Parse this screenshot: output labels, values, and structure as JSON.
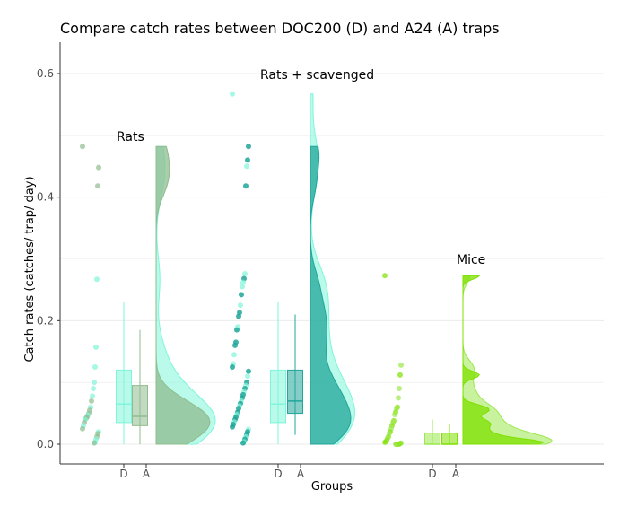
{
  "chart_data": {
    "type": "raincloud",
    "title": "Compare catch rates between DOC200 (D) and A24 (A) traps",
    "xlabel": "Groups",
    "ylabel": "Catch rates (catches/ trap/ day)",
    "ylim": [
      -0.03,
      0.65
    ],
    "yticks": [
      0.0,
      0.2,
      0.4,
      0.6
    ],
    "ytick_labels": [
      "0.0",
      "0.2",
      "0.4",
      "0.6"
    ],
    "grid": true,
    "groups": [
      {
        "name": "Rats",
        "colors": {
          "D": "#7ff5d9",
          "A": "#8fbc8f"
        },
        "D": {
          "min": 0.0,
          "q1": 0.035,
          "median": 0.065,
          "q3": 0.12,
          "max": 0.23
        },
        "A": {
          "min": 0.0,
          "q1": 0.03,
          "median": 0.045,
          "q3": 0.095,
          "max": 0.185
        },
        "points": [
          {
            "trap": "A",
            "value": 0.482
          },
          {
            "trap": "A",
            "value": 0.448
          },
          {
            "trap": "A",
            "value": 0.418
          },
          {
            "trap": "D",
            "value": 0.267
          },
          {
            "trap": "D",
            "value": 0.157
          },
          {
            "trap": "D",
            "value": 0.125
          },
          {
            "trap": "D",
            "value": 0.1
          },
          {
            "trap": "D",
            "value": 0.09
          },
          {
            "trap": "D",
            "value": 0.078
          },
          {
            "trap": "A",
            "value": 0.07
          },
          {
            "trap": "D",
            "value": 0.06
          },
          {
            "trap": "A",
            "value": 0.055
          },
          {
            "trap": "A",
            "value": 0.05
          },
          {
            "trap": "D",
            "value": 0.047
          },
          {
            "trap": "A",
            "value": 0.044
          },
          {
            "trap": "A",
            "value": 0.042
          },
          {
            "trap": "D",
            "value": 0.04
          },
          {
            "trap": "A",
            "value": 0.035
          },
          {
            "trap": "D",
            "value": 0.03
          },
          {
            "trap": "A",
            "value": 0.025
          },
          {
            "trap": "D",
            "value": 0.02
          },
          {
            "trap": "A",
            "value": 0.017
          },
          {
            "trap": "A",
            "value": 0.012
          },
          {
            "trap": "D",
            "value": 0.008
          },
          {
            "trap": "D",
            "value": 0.003
          },
          {
            "trap": "A",
            "value": 0.002
          }
        ]
      },
      {
        "name": "Rats + scavenged",
        "colors": {
          "D": "#7ff5d9",
          "A": "#20a69a"
        },
        "D": {
          "min": 0.0,
          "q1": 0.035,
          "median": 0.065,
          "q3": 0.12,
          "max": 0.23
        },
        "A": {
          "min": 0.015,
          "q1": 0.05,
          "median": 0.07,
          "q3": 0.12,
          "max": 0.21
        },
        "points": [
          {
            "trap": "D",
            "value": 0.567
          },
          {
            "trap": "A",
            "value": 0.482
          },
          {
            "trap": "A",
            "value": 0.46
          },
          {
            "trap": "D",
            "value": 0.45
          },
          {
            "trap": "A",
            "value": 0.418
          },
          {
            "trap": "D",
            "value": 0.276
          },
          {
            "trap": "A",
            "value": 0.268
          },
          {
            "trap": "D",
            "value": 0.262
          },
          {
            "trap": "D",
            "value": 0.255
          },
          {
            "trap": "A",
            "value": 0.242
          },
          {
            "trap": "D",
            "value": 0.225
          },
          {
            "trap": "A",
            "value": 0.213
          },
          {
            "trap": "A",
            "value": 0.207
          },
          {
            "trap": "D",
            "value": 0.19
          },
          {
            "trap": "A",
            "value": 0.185
          },
          {
            "trap": "A",
            "value": 0.165
          },
          {
            "trap": "A",
            "value": 0.16
          },
          {
            "trap": "D",
            "value": 0.145
          },
          {
            "trap": "D",
            "value": 0.13
          },
          {
            "trap": "A",
            "value": 0.125
          },
          {
            "trap": "A",
            "value": 0.118
          },
          {
            "trap": "D",
            "value": 0.11
          },
          {
            "trap": "A",
            "value": 0.1
          },
          {
            "trap": "D",
            "value": 0.095
          },
          {
            "trap": "A",
            "value": 0.09
          },
          {
            "trap": "D",
            "value": 0.085
          },
          {
            "trap": "A",
            "value": 0.08
          },
          {
            "trap": "A",
            "value": 0.075
          },
          {
            "trap": "D",
            "value": 0.07
          },
          {
            "trap": "A",
            "value": 0.066
          },
          {
            "trap": "D",
            "value": 0.062
          },
          {
            "trap": "A",
            "value": 0.058
          },
          {
            "trap": "A",
            "value": 0.052
          },
          {
            "trap": "D",
            "value": 0.048
          },
          {
            "trap": "A",
            "value": 0.044
          },
          {
            "trap": "A",
            "value": 0.04
          },
          {
            "trap": "D",
            "value": 0.036
          },
          {
            "trap": "A",
            "value": 0.032
          },
          {
            "trap": "A",
            "value": 0.028
          },
          {
            "trap": "D",
            "value": 0.024
          },
          {
            "trap": "A",
            "value": 0.02
          },
          {
            "trap": "A",
            "value": 0.016
          },
          {
            "trap": "D",
            "value": 0.012
          },
          {
            "trap": "A",
            "value": 0.008
          },
          {
            "trap": "D",
            "value": 0.004
          },
          {
            "trap": "A",
            "value": 0.002
          }
        ]
      },
      {
        "name": "Mice",
        "colors": {
          "D": "#9be84c",
          "A": "#7fe000"
        },
        "D": {
          "min": 0.0,
          "q1": 0.0,
          "median": 0.0,
          "q3": 0.018,
          "max": 0.04
        },
        "A": {
          "min": 0.0,
          "q1": 0.0,
          "median": 0.0,
          "q3": 0.018,
          "max": 0.032
        },
        "points": [
          {
            "trap": "A",
            "value": 0.273
          },
          {
            "trap": "D",
            "value": 0.128
          },
          {
            "trap": "A",
            "value": 0.112
          },
          {
            "trap": "D",
            "value": 0.09
          },
          {
            "trap": "D",
            "value": 0.075
          },
          {
            "trap": "A",
            "value": 0.06
          },
          {
            "trap": "D",
            "value": 0.058
          },
          {
            "trap": "A",
            "value": 0.052
          },
          {
            "trap": "D",
            "value": 0.048
          },
          {
            "trap": "A",
            "value": 0.038
          },
          {
            "trap": "D",
            "value": 0.035
          },
          {
            "trap": "A",
            "value": 0.03
          },
          {
            "trap": "D",
            "value": 0.025
          },
          {
            "trap": "A",
            "value": 0.02
          },
          {
            "trap": "D",
            "value": 0.018
          },
          {
            "trap": "A",
            "value": 0.012
          },
          {
            "trap": "D",
            "value": 0.01
          },
          {
            "trap": "A",
            "value": 0.006
          },
          {
            "trap": "D",
            "value": 0.004
          },
          {
            "trap": "A",
            "value": 0.003
          },
          {
            "trap": "D",
            "value": 0.002
          },
          {
            "trap": "A",
            "value": 0.001
          },
          {
            "trap": "D",
            "value": 0.0
          },
          {
            "trap": "A",
            "value": 0.0
          },
          {
            "trap": "D",
            "value": 0.0
          },
          {
            "trap": "A",
            "value": 0.0
          },
          {
            "trap": "D",
            "value": 0.0
          }
        ]
      }
    ],
    "x_tick_labels": [
      "D",
      "A",
      "D",
      "A",
      "D",
      "A"
    ]
  }
}
